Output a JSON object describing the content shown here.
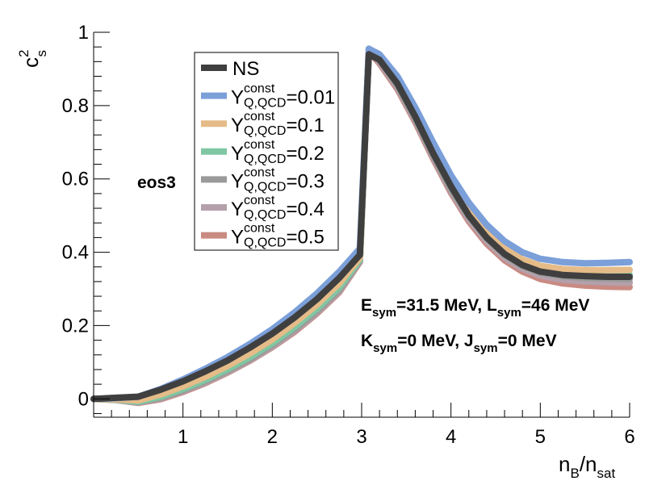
{
  "chart_data": {
    "type": "line",
    "title": "",
    "xlabel": {
      "main": "n",
      "sub": "B",
      "slash": "/n",
      "sub2": "sat"
    },
    "ylabel": {
      "main": "c",
      "sup": "2",
      "sub": "s"
    },
    "xlim": [
      0,
      6
    ],
    "ylim": [
      -0.05,
      1.0
    ],
    "x_ticks": [
      1,
      2,
      3,
      4,
      5,
      6
    ],
    "y_ticks": [
      0,
      0.2,
      0.4,
      0.6,
      0.8,
      1
    ],
    "x_tick_labels": [
      "1",
      "2",
      "3",
      "4",
      "5",
      "6"
    ],
    "y_tick_labels": [
      "0",
      "0.2",
      "0.4",
      "0.6",
      "0.8",
      "1"
    ],
    "grid": false,
    "legend_position": "top-left",
    "annotations": {
      "model_label": "eos3",
      "line1": [
        {
          "text": "E",
          "role": "main"
        },
        {
          "text": "sym",
          "role": "sub"
        },
        {
          "text": "=31.5 MeV, L",
          "role": "main"
        },
        {
          "text": "sym",
          "role": "sub"
        },
        {
          "text": "=46 MeV",
          "role": "main"
        }
      ],
      "line2": [
        {
          "text": "K",
          "role": "main"
        },
        {
          "text": "sym",
          "role": "sub"
        },
        {
          "text": "=0 MeV, J",
          "role": "main"
        },
        {
          "text": "sym",
          "role": "sub"
        },
        {
          "text": "=0 MeV",
          "role": "main"
        }
      ]
    },
    "series": [
      {
        "name": "NS",
        "sup": "",
        "sub": "",
        "value": "",
        "color": "#3f3f3f",
        "width": 8,
        "x": [
          0,
          0.25,
          0.5,
          0.75,
          1,
          1.25,
          1.5,
          1.75,
          2,
          2.25,
          2.5,
          2.75,
          2.98,
          3.08,
          3.2,
          3.4,
          3.6,
          3.8,
          4.0,
          4.2,
          4.4,
          4.6,
          4.8,
          5.0,
          5.25,
          5.5,
          5.75,
          6.0
        ],
        "y": [
          0,
          0.003,
          0.006,
          0.025,
          0.048,
          0.075,
          0.105,
          0.14,
          0.178,
          0.222,
          0.272,
          0.33,
          0.393,
          0.94,
          0.925,
          0.86,
          0.77,
          0.67,
          0.58,
          0.5,
          0.44,
          0.395,
          0.365,
          0.347,
          0.338,
          0.335,
          0.333,
          0.333
        ]
      },
      {
        "name": "Y",
        "sup": "const",
        "sub": "Q,QCD",
        "value": "=0.01",
        "color": "#7b9fd9",
        "width": 8,
        "x": [
          0,
          0.25,
          0.5,
          0.75,
          1,
          1.25,
          1.5,
          1.75,
          2,
          2.25,
          2.5,
          2.75,
          2.98,
          3.08,
          3.2,
          3.4,
          3.6,
          3.8,
          4.0,
          4.2,
          4.4,
          4.6,
          4.8,
          5.0,
          5.25,
          5.5,
          5.75,
          6.0
        ],
        "y": [
          0,
          0.002,
          0.006,
          0.027,
          0.053,
          0.082,
          0.114,
          0.15,
          0.19,
          0.236,
          0.288,
          0.347,
          0.41,
          0.955,
          0.94,
          0.88,
          0.795,
          0.7,
          0.61,
          0.535,
          0.475,
          0.43,
          0.4,
          0.382,
          0.373,
          0.37,
          0.371,
          0.373
        ]
      },
      {
        "name": "Y",
        "sup": "const",
        "sub": "Q,QCD",
        "value": "=0.1",
        "color": "#e5bb88",
        "width": 8,
        "x": [
          0,
          0.25,
          0.5,
          0.75,
          1,
          1.25,
          1.5,
          1.75,
          2,
          2.25,
          2.5,
          2.75,
          2.98,
          3.08,
          3.2,
          3.4,
          3.6,
          3.8,
          4.0,
          4.2,
          4.4,
          4.6,
          4.8,
          5.0,
          5.25,
          5.5,
          5.75,
          6.0
        ],
        "y": [
          0,
          -0.001,
          -0.004,
          0.012,
          0.034,
          0.06,
          0.09,
          0.124,
          0.162,
          0.207,
          0.257,
          0.315,
          0.385,
          0.955,
          0.935,
          0.87,
          0.78,
          0.68,
          0.59,
          0.515,
          0.455,
          0.41,
          0.38,
          0.363,
          0.354,
          0.351,
          0.351,
          0.352
        ]
      },
      {
        "name": "Y",
        "sup": "const",
        "sub": "Q,QCD",
        "value": "=0.2",
        "color": "#7fc7a2",
        "width": 8,
        "x": [
          0,
          0.25,
          0.5,
          0.75,
          1,
          1.25,
          1.5,
          1.75,
          2,
          2.25,
          2.5,
          2.75,
          2.98,
          3.08,
          3.2,
          3.4,
          3.6,
          3.8,
          4.0,
          4.2,
          4.4,
          4.6,
          4.8,
          5.0,
          5.25,
          5.5,
          5.75,
          6.0
        ],
        "y": [
          0,
          -0.002,
          -0.008,
          0.006,
          0.027,
          0.052,
          0.081,
          0.114,
          0.152,
          0.196,
          0.246,
          0.304,
          0.38,
          0.955,
          0.93,
          0.86,
          0.77,
          0.67,
          0.58,
          0.505,
          0.445,
          0.4,
          0.37,
          0.352,
          0.343,
          0.34,
          0.339,
          0.339
        ]
      },
      {
        "name": "Y",
        "sup": "const",
        "sub": "Q,QCD",
        "value": "=0.3",
        "color": "#9a9a9a",
        "width": 8,
        "x": [
          0,
          0.25,
          0.5,
          0.75,
          1,
          1.25,
          1.5,
          1.75,
          2,
          2.25,
          2.5,
          2.75,
          2.98,
          3.08,
          3.2,
          3.4,
          3.6,
          3.8,
          4.0,
          4.2,
          4.4,
          4.6,
          4.8,
          5.0,
          5.25,
          5.5,
          5.75,
          6.0
        ],
        "y": [
          0,
          -0.002,
          -0.009,
          0.003,
          0.023,
          0.048,
          0.077,
          0.109,
          0.147,
          0.19,
          0.24,
          0.298,
          0.377,
          0.952,
          0.925,
          0.855,
          0.765,
          0.665,
          0.572,
          0.497,
          0.437,
          0.392,
          0.362,
          0.344,
          0.334,
          0.33,
          0.328,
          0.327
        ]
      },
      {
        "name": "Y",
        "sup": "const",
        "sub": "Q,QCD",
        "value": "=0.4",
        "color": "#b4a0ab",
        "width": 8,
        "x": [
          0,
          0.25,
          0.5,
          0.75,
          1,
          1.25,
          1.5,
          1.75,
          2,
          2.25,
          2.5,
          2.75,
          2.98,
          3.08,
          3.2,
          3.4,
          3.6,
          3.8,
          4.0,
          4.2,
          4.4,
          4.6,
          4.8,
          5.0,
          5.25,
          5.5,
          5.75,
          6.0
        ],
        "y": [
          0,
          -0.003,
          -0.01,
          0.001,
          0.021,
          0.045,
          0.074,
          0.106,
          0.143,
          0.186,
          0.236,
          0.294,
          0.375,
          0.95,
          0.92,
          0.85,
          0.76,
          0.66,
          0.567,
          0.49,
          0.43,
          0.385,
          0.355,
          0.336,
          0.325,
          0.32,
          0.318,
          0.317
        ]
      },
      {
        "name": "Y",
        "sup": "const",
        "sub": "Q,QCD",
        "value": "=0.5",
        "color": "#c98a82",
        "width": 8,
        "x": [
          0,
          0.25,
          0.5,
          0.75,
          1,
          1.25,
          1.5,
          1.75,
          2,
          2.25,
          2.5,
          2.75,
          2.98,
          3.08,
          3.2,
          3.4,
          3.6,
          3.8,
          4.0,
          4.2,
          4.4,
          4.6,
          4.8,
          5.0,
          5.25,
          5.5,
          5.75,
          6.0
        ],
        "y": [
          0,
          -0.003,
          -0.011,
          -0.001,
          0.019,
          0.043,
          0.072,
          0.104,
          0.141,
          0.183,
          0.233,
          0.291,
          0.373,
          0.948,
          0.915,
          0.845,
          0.755,
          0.655,
          0.562,
          0.484,
          0.423,
          0.378,
          0.347,
          0.327,
          0.315,
          0.309,
          0.306,
          0.305
        ]
      }
    ]
  }
}
